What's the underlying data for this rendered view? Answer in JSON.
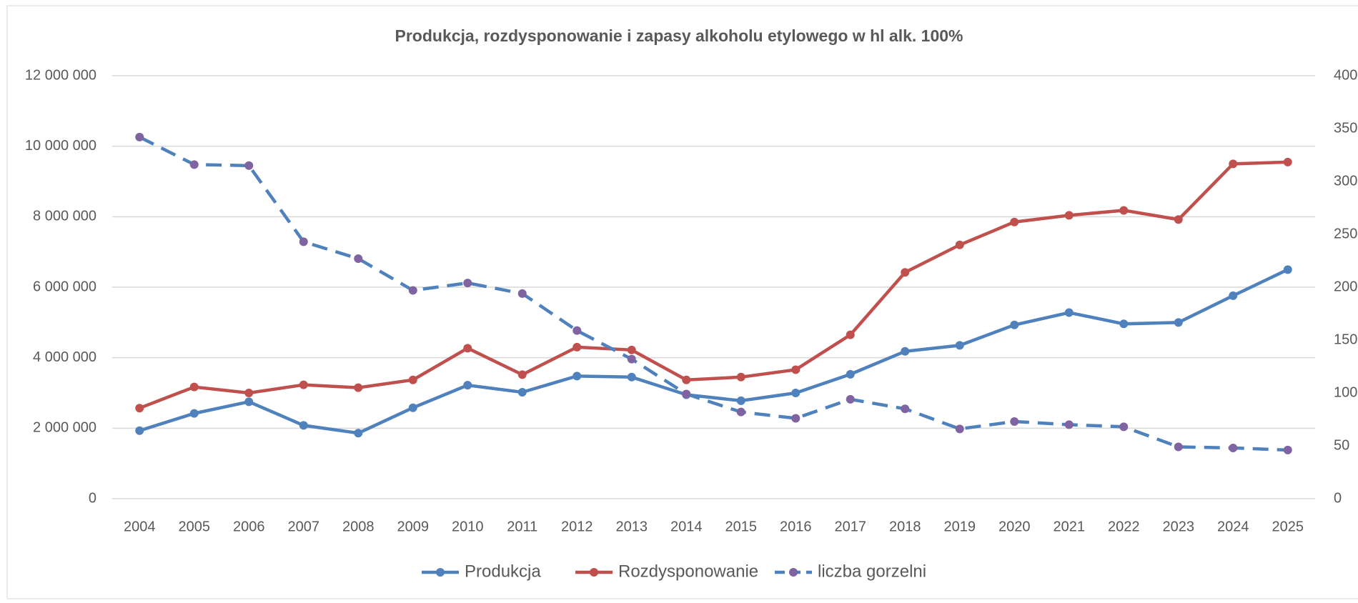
{
  "chart_data": {
    "type": "line",
    "title": "Produkcja, rozdysponowanie i zapasy alkoholu etylowego w hl alk. 100%",
    "categories": [
      "2004",
      "2005",
      "2006",
      "2007",
      "2008",
      "2009",
      "2010",
      "2011",
      "2012",
      "2013",
      "2014",
      "2015",
      "2016",
      "2017",
      "2018",
      "2019",
      "2020",
      "2021",
      "2022",
      "2023",
      "2024",
      "2025"
    ],
    "series": [
      {
        "name": "Produkcja",
        "color": "#4f81bd",
        "values": [
          1930000,
          2420000,
          2750000,
          2080000,
          1860000,
          2580000,
          3220000,
          3020000,
          3480000,
          3450000,
          2950000,
          2780000,
          3000000,
          3530000,
          4180000,
          4350000,
          4930000,
          5280000,
          4960000,
          5000000,
          5760000,
          6500000
        ]
      },
      {
        "name": "Rozdysponowanie",
        "color": "#c0504d",
        "values": [
          2570000,
          3170000,
          3000000,
          3230000,
          3150000,
          3370000,
          4270000,
          3520000,
          4300000,
          4220000,
          3370000,
          3450000,
          3660000,
          4650000,
          6420000,
          7200000,
          7850000,
          8040000,
          8180000,
          7920000,
          9500000,
          9550000
        ]
      },
      {
        "name": "liczba gorzelni",
        "color": "#4f81bd",
        "marker_color": "#8064a2",
        "dashed": true,
        "axis": "y2",
        "values": [
          342,
          316,
          315,
          243,
          227,
          197,
          204,
          194,
          159,
          132,
          99,
          82,
          76,
          94,
          85,
          66,
          73,
          70,
          68,
          49,
          48,
          46
        ]
      }
    ],
    "ylim": [
      0,
      12000000
    ],
    "yticks": [
      0,
      {
        "value": 2000000,
        "label": "2 000 000"
      },
      {
        "value": 4000000,
        "label": "4 000 000"
      },
      {
        "value": 6000000,
        "label": "6 000 000"
      },
      {
        "value": 8000000,
        "label": "8 000 000"
      },
      {
        "value": 10000000,
        "label": "10 000 000"
      },
      {
        "value": 12000000,
        "label": "12 000 000"
      }
    ],
    "y2lim": [
      0,
      400
    ],
    "y2ticks": [
      0,
      50,
      100,
      150,
      200,
      250,
      300,
      350,
      400
    ],
    "grid": true,
    "legend": "bottom"
  }
}
